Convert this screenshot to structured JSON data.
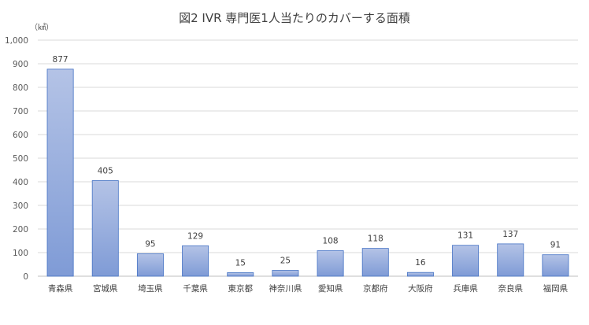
{
  "chart_data": {
    "type": "bar",
    "title": "図2 IVR 専門医1人当たりのカバーする面積",
    "unit": "（㎢）",
    "categories": [
      "青森県",
      "宮城県",
      "埼玉県",
      "千葉県",
      "東京都",
      "神奈川県",
      "愛知県",
      "京都府",
      "大阪府",
      "兵庫県",
      "奈良県",
      "福岡県"
    ],
    "values": [
      877,
      405,
      95,
      129,
      15,
      25,
      108,
      118,
      16,
      131,
      137,
      91
    ],
    "data_labels": [
      "877",
      "405",
      "95",
      "129",
      "15",
      "25",
      "108",
      "118",
      "16",
      "131",
      "137",
      "91"
    ],
    "ylim": [
      0,
      1000
    ],
    "yticks": [
      0,
      100,
      200,
      300,
      400,
      500,
      600,
      700,
      800,
      900,
      1000
    ],
    "ytick_labels": [
      "0",
      "100",
      "200",
      "300",
      "400",
      "500",
      "600",
      "700",
      "800",
      "900",
      "1,000"
    ],
    "grid": true,
    "legend": "none",
    "colors": {
      "bar_top": "#b4c3e6",
      "bar_bottom": "#7f9bd6",
      "bar_border": "#4472c4"
    }
  }
}
